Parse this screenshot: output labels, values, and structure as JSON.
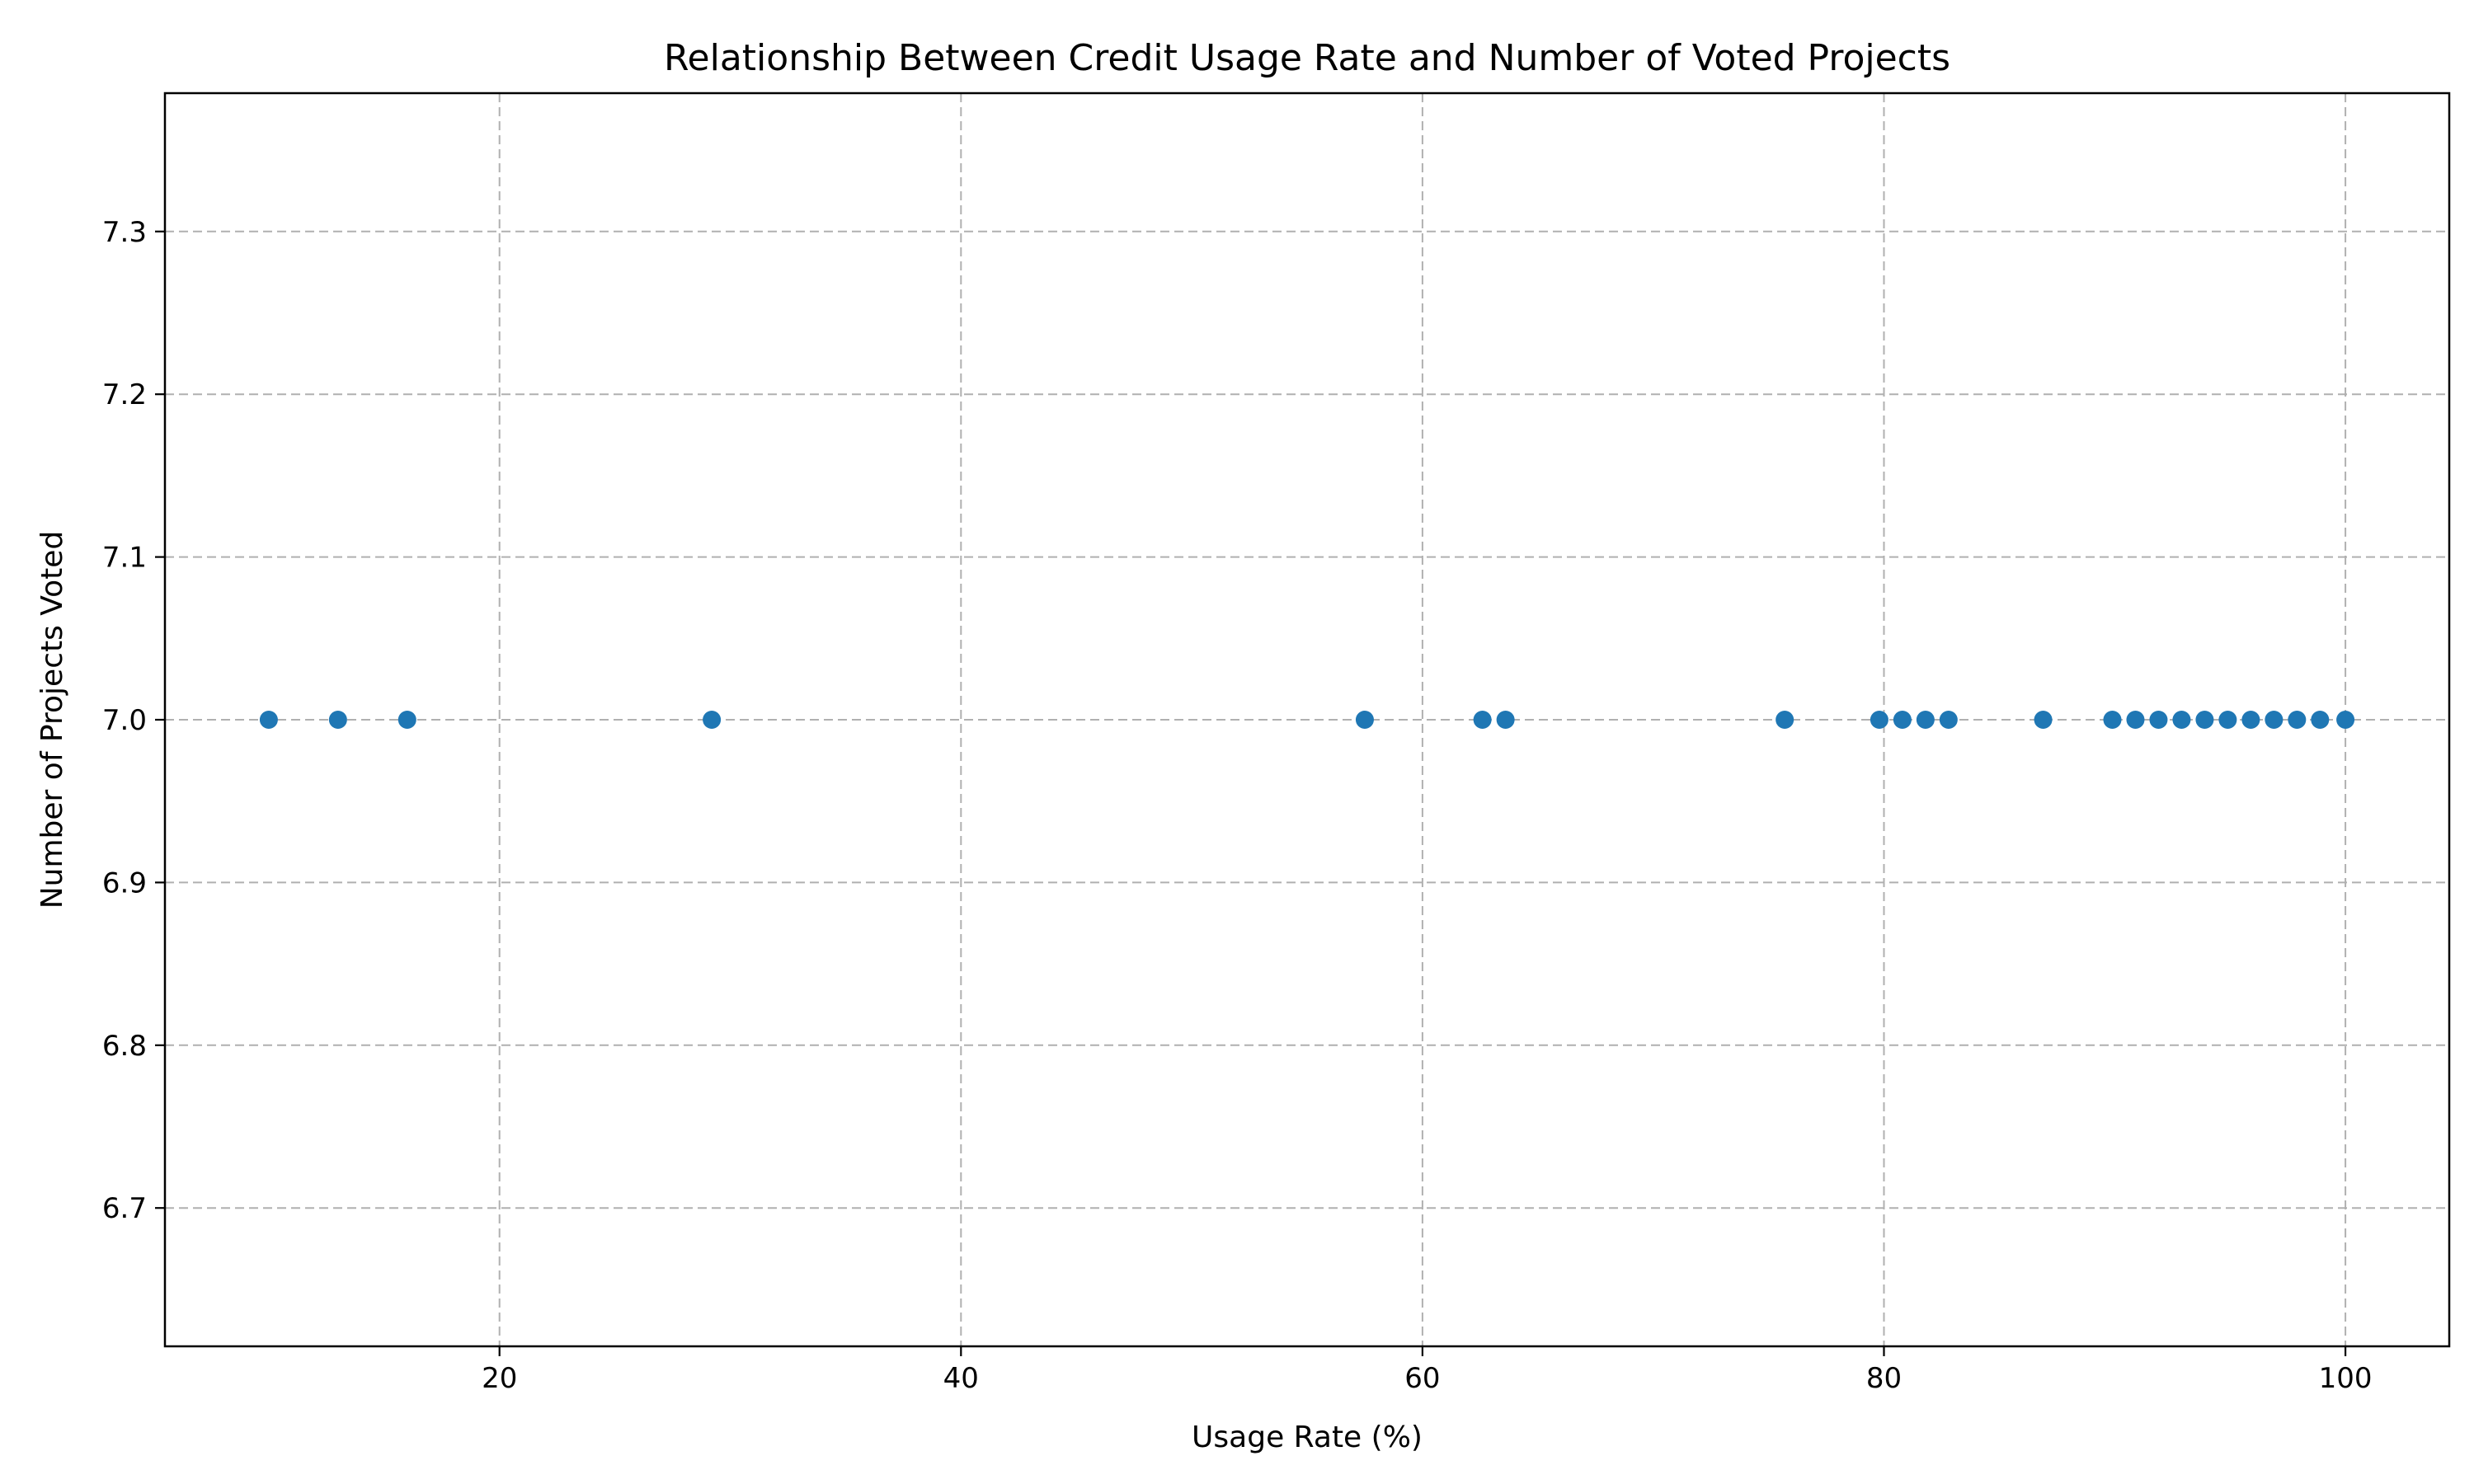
{
  "chart_data": {
    "type": "scatter",
    "title": "Relationship Between Credit Usage Rate and Number of Voted Projects",
    "xlabel": "Usage Rate (%)",
    "ylabel": "Number of Projects Voted",
    "xlim": [
      5.5,
      104.5
    ],
    "ylim": [
      6.615,
      7.385
    ],
    "x_ticks": [
      20,
      40,
      60,
      80,
      100
    ],
    "x_tick_labels": [
      "20",
      "40",
      "60",
      "80",
      "100"
    ],
    "y_ticks": [
      6.7,
      6.8,
      6.9,
      7.0,
      7.1,
      7.2,
      7.3
    ],
    "y_tick_labels": [
      "6.7",
      "6.8",
      "6.9",
      "7.0",
      "7.1",
      "7.2",
      "7.3"
    ],
    "grid": true,
    "marker_color": "#1f77b4",
    "points": [
      {
        "x": 10,
        "y": 7.0
      },
      {
        "x": 13,
        "y": 7.0
      },
      {
        "x": 16,
        "y": 7.0
      },
      {
        "x": 29.2,
        "y": 7.0
      },
      {
        "x": 57.5,
        "y": 7.0
      },
      {
        "x": 62.6,
        "y": 7.0
      },
      {
        "x": 63.6,
        "y": 7.0
      },
      {
        "x": 75.7,
        "y": 7.0
      },
      {
        "x": 79.8,
        "y": 7.0
      },
      {
        "x": 80.8,
        "y": 7.0
      },
      {
        "x": 81.8,
        "y": 7.0
      },
      {
        "x": 82.8,
        "y": 7.0
      },
      {
        "x": 86.9,
        "y": 7.0
      },
      {
        "x": 89.9,
        "y": 7.0
      },
      {
        "x": 90.9,
        "y": 7.0
      },
      {
        "x": 91.9,
        "y": 7.0
      },
      {
        "x": 92.9,
        "y": 7.0
      },
      {
        "x": 93.9,
        "y": 7.0
      },
      {
        "x": 94.9,
        "y": 7.0
      },
      {
        "x": 95.9,
        "y": 7.0
      },
      {
        "x": 96.9,
        "y": 7.0
      },
      {
        "x": 97.9,
        "y": 7.0
      },
      {
        "x": 98.9,
        "y": 7.0
      },
      {
        "x": 100,
        "y": 7.0
      }
    ]
  }
}
